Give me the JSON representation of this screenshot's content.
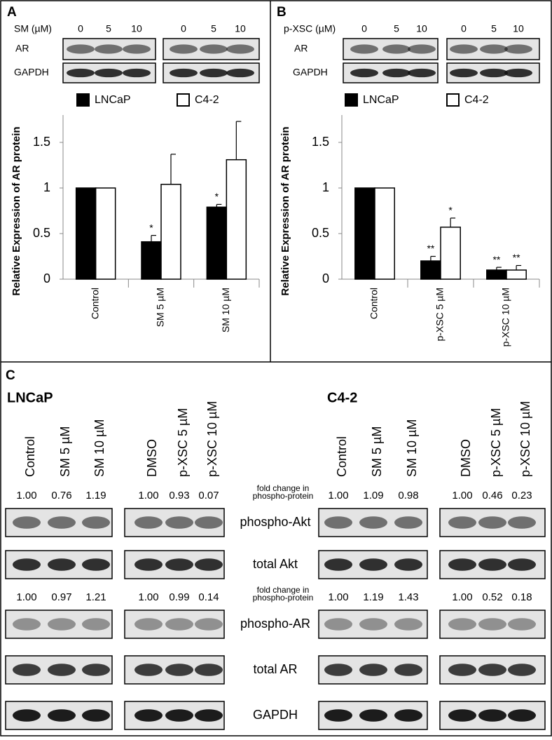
{
  "panels": [
    {
      "label": "A",
      "dose_label": "SM (µM)",
      "doses": [
        0,
        5,
        10,
        0,
        5,
        10
      ],
      "rows": [
        "AR",
        "GAPDH"
      ]
    },
    {
      "label": "B",
      "dose_label": "p-XSC (µM)",
      "doses": [
        0,
        5,
        10,
        0,
        5,
        10
      ],
      "rows": [
        "AR",
        "GAPDH"
      ]
    }
  ],
  "chart_data": [
    {
      "type": "bar",
      "y_label": "Relative Expression of AR protein",
      "categories": [
        "Control",
        "SM 5 µM",
        "SM 10 µM"
      ],
      "series": [
        {
          "name": "LNCaP",
          "color": "#000000",
          "values": [
            1,
            0.41,
            0.79
          ],
          "errors": [
            0,
            0.07,
            0.03
          ],
          "annotations": [
            null,
            "*",
            "*"
          ]
        },
        {
          "name": "C4-2",
          "color": "#ffffff",
          "values": [
            1,
            1.04,
            1.31
          ],
          "errors": [
            0,
            0.33,
            0.42
          ],
          "annotations": [
            null,
            null,
            null
          ]
        }
      ],
      "ylim": [
        0,
        1.8
      ],
      "yticks": [
        0,
        0.5,
        1,
        1.5
      ]
    },
    {
      "type": "bar",
      "y_label": "Relative Expression of AR protein",
      "categories": [
        "Control",
        "p-XSC 5 µM",
        "p-XSC 10 µM"
      ],
      "series": [
        {
          "name": "LNCaP",
          "color": "#000000",
          "values": [
            1,
            0.2,
            0.1
          ],
          "errors": [
            0,
            0.05,
            0.03
          ],
          "annotations": [
            null,
            "**",
            "**"
          ]
        },
        {
          "name": "C4-2",
          "color": "#ffffff",
          "values": [
            1,
            0.57,
            0.1
          ],
          "errors": [
            0,
            0.1,
            0.05
          ],
          "annotations": [
            null,
            "*",
            "**"
          ]
        }
      ],
      "ylim": [
        0,
        1.8
      ],
      "yticks": [
        0,
        0.5,
        1,
        1.5
      ]
    }
  ],
  "panel_c": {
    "label": "C",
    "fold_label": [
      "fold change in",
      "phospho-protein"
    ],
    "rows": [
      "phospho-Akt",
      "total Akt",
      "phospho-AR",
      "total AR",
      "GAPDH"
    ],
    "groups": [
      {
        "name": "LNCaP",
        "lanes": [
          "Control",
          "SM 5 µM",
          "SM 10 µM",
          "DMSO",
          "p-XSC 5 µM",
          "p-XSC 10 µM"
        ],
        "fold_akt": [
          "1.00",
          "0.76",
          "1.19",
          "1.00",
          "0.93",
          "0.07"
        ],
        "fold_ar": [
          "1.00",
          "0.97",
          "1.21",
          "1.00",
          "0.99",
          "0.14"
        ]
      },
      {
        "name": "C4-2",
        "lanes": [
          "Control",
          "SM 5 µM",
          "SM 10 µM",
          "DMSO",
          "p-XSC 5 µM",
          "p-XSC 10 µM"
        ],
        "fold_akt": [
          "1.00",
          "1.09",
          "0.98",
          "1.00",
          "0.46",
          "0.23"
        ],
        "fold_ar": [
          "1.00",
          "1.19",
          "1.43",
          "1.00",
          "0.52",
          "0.18"
        ]
      }
    ]
  }
}
